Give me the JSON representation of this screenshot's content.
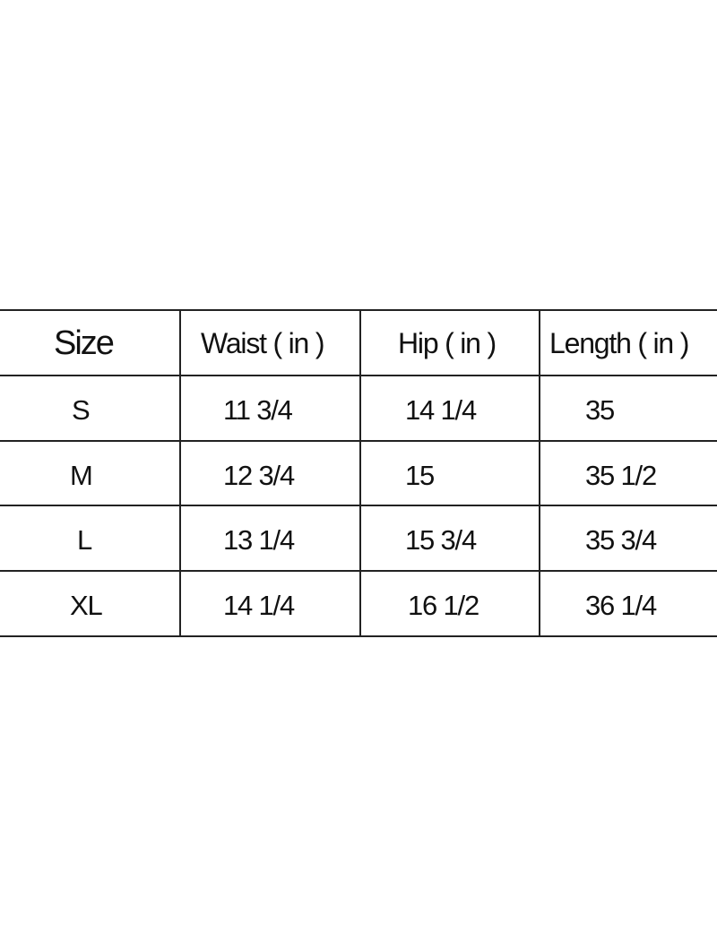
{
  "table": {
    "headers": [
      "Size",
      "Waist ( in )",
      "Hip ( in )",
      "Length ( in )"
    ],
    "rows": [
      [
        "S",
        "11 3/4",
        "14 1/4",
        "35"
      ],
      [
        "M",
        "12 3/4",
        "15",
        "35 1/2"
      ],
      [
        "L",
        "13 1/4",
        "15 3/4",
        "35 3/4"
      ],
      [
        "XL",
        "14 1/4",
        "16 1/2",
        "36 1/4"
      ]
    ]
  }
}
